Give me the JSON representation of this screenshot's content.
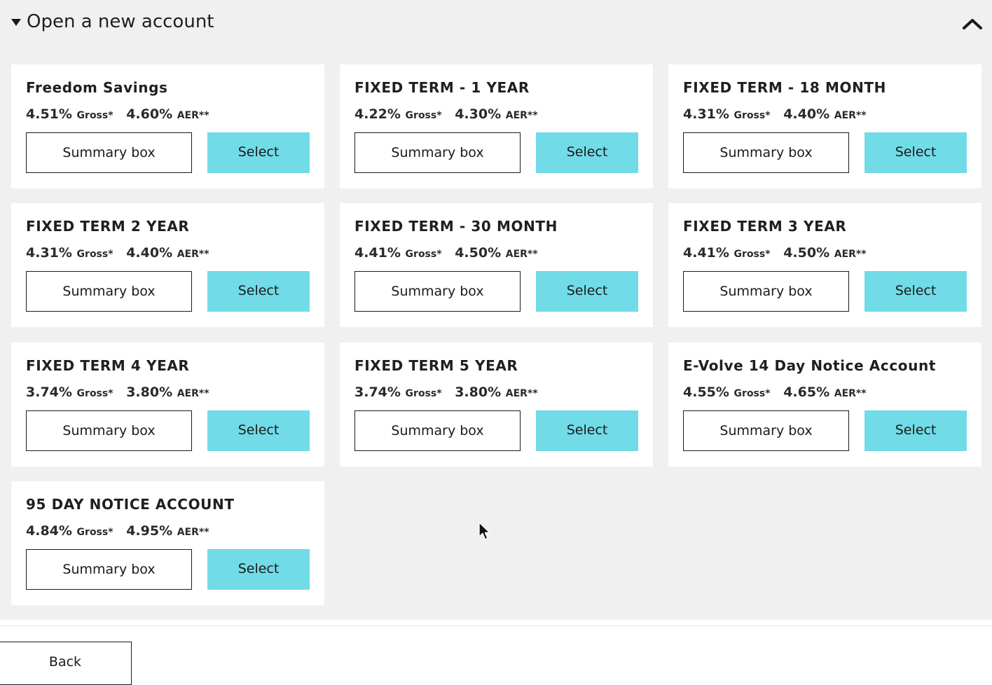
{
  "section": {
    "title": "Open a new account",
    "expanded_icon": "triangle-down-icon",
    "collapse_icon": "chevron-up-icon"
  },
  "accounts": [
    {
      "name": "Freedom Savings",
      "gross_rate": "4.51%",
      "gross_label": "Gross*",
      "aer_rate": "4.60%",
      "aer_label": "AER**",
      "summary_label": "Summary box",
      "select_label": "Select"
    },
    {
      "name": "FIXED TERM - 1 YEAR",
      "gross_rate": "4.22%",
      "gross_label": "Gross*",
      "aer_rate": "4.30%",
      "aer_label": "AER**",
      "summary_label": "Summary box",
      "select_label": "Select"
    },
    {
      "name": "FIXED TERM - 18 MONTH",
      "gross_rate": "4.31%",
      "gross_label": "Gross*",
      "aer_rate": "4.40%",
      "aer_label": "AER**",
      "summary_label": "Summary box",
      "select_label": "Select"
    },
    {
      "name": "FIXED TERM 2 YEAR",
      "gross_rate": "4.31%",
      "gross_label": "Gross*",
      "aer_rate": "4.40%",
      "aer_label": "AER**",
      "summary_label": "Summary box",
      "select_label": "Select"
    },
    {
      "name": "FIXED TERM - 30 MONTH",
      "gross_rate": "4.41%",
      "gross_label": "Gross*",
      "aer_rate": "4.50%",
      "aer_label": "AER**",
      "summary_label": "Summary box",
      "select_label": "Select"
    },
    {
      "name": "FIXED TERM 3 YEAR",
      "gross_rate": "4.41%",
      "gross_label": "Gross*",
      "aer_rate": "4.50%",
      "aer_label": "AER**",
      "summary_label": "Summary box",
      "select_label": "Select"
    },
    {
      "name": "FIXED TERM 4 YEAR",
      "gross_rate": "3.74%",
      "gross_label": "Gross*",
      "aer_rate": "3.80%",
      "aer_label": "AER**",
      "summary_label": "Summary box",
      "select_label": "Select"
    },
    {
      "name": "FIXED TERM 5 YEAR",
      "gross_rate": "3.74%",
      "gross_label": "Gross*",
      "aer_rate": "3.80%",
      "aer_label": "AER**",
      "summary_label": "Summary box",
      "select_label": "Select"
    },
    {
      "name": "E-Volve 14 Day Notice Account",
      "gross_rate": "4.55%",
      "gross_label": "Gross*",
      "aer_rate": "4.65%",
      "aer_label": "AER**",
      "summary_label": "Summary box",
      "select_label": "Select"
    },
    {
      "name": "95 DAY NOTICE ACCOUNT",
      "gross_rate": "4.84%",
      "gross_label": "Gross*",
      "aer_rate": "4.95%",
      "aer_label": "AER**",
      "summary_label": "Summary box",
      "select_label": "Select"
    }
  ],
  "footer": {
    "back_label": "Back"
  },
  "colors": {
    "select_button": "#71dbe7",
    "panel_background": "#f0f0f0",
    "card_background": "#ffffff"
  },
  "cursor_icon": "mouse-pointer-icon"
}
